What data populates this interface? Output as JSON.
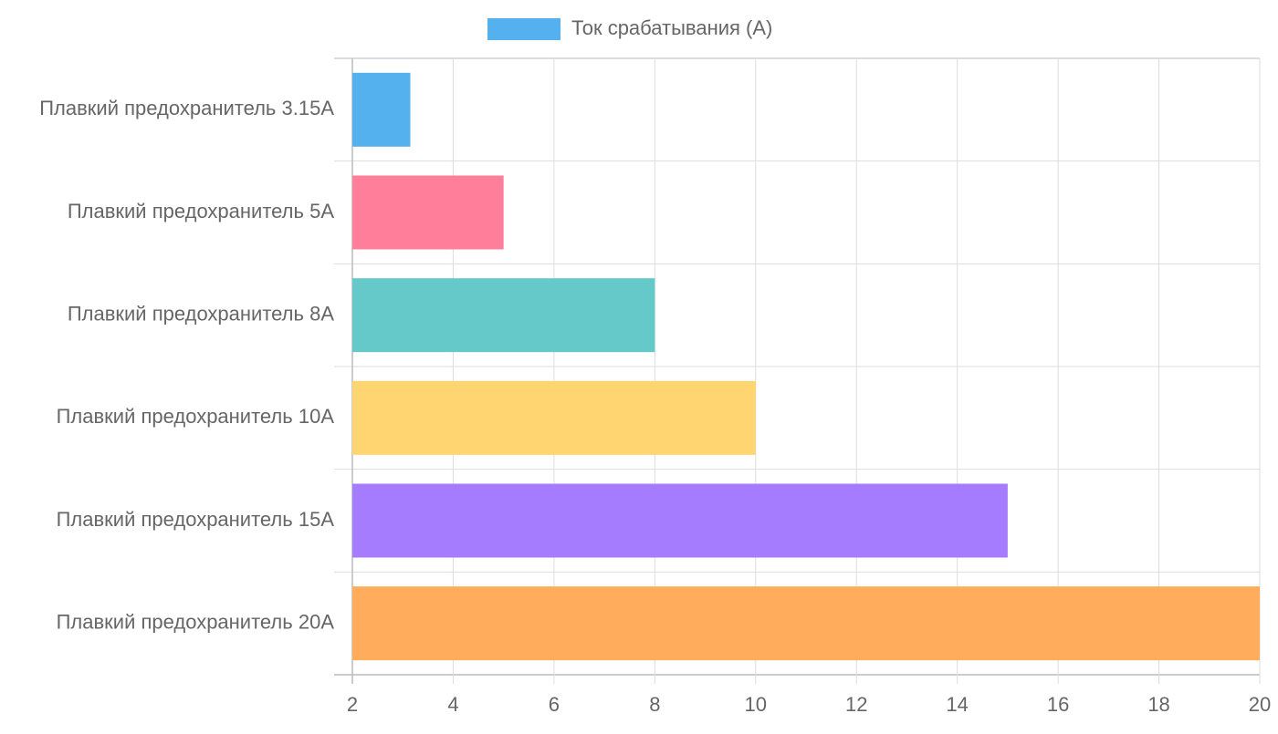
{
  "chart_data": {
    "type": "hbar",
    "categories": [
      "Плавкий предохранитель 3.15А",
      "Плавкий предохранитель 5А",
      "Плавкий предохранитель 8А",
      "Плавкий предохранитель 10А",
      "Плавкий предохранитель 15А",
      "Плавкий предохранитель 20А"
    ],
    "series": [
      {
        "name": "Ток срабатывания (А)",
        "color": "#55b0ee",
        "colors": [
          "#55b0ee",
          "#ff7f9b",
          "#66c9c9",
          "#ffd571",
          "#a57cfd",
          "#ffad5c"
        ],
        "values": [
          3.15,
          5,
          8,
          10,
          15,
          20
        ]
      }
    ],
    "xlim": [
      2,
      20
    ],
    "xticks": [
      2,
      4,
      6,
      8,
      10,
      12,
      14,
      16,
      18,
      20
    ],
    "grid": true,
    "legend": "top"
  }
}
